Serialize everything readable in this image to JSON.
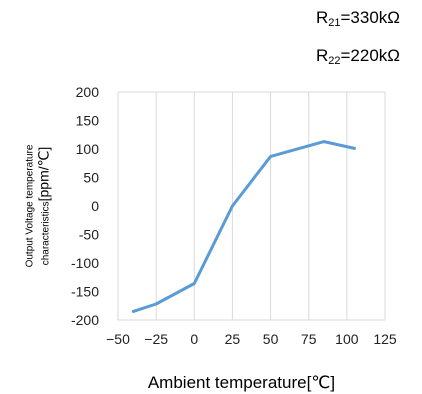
{
  "annotations": {
    "line1": {
      "symbol": "R",
      "sub": "21",
      "rest": "=330kΩ"
    },
    "line2": {
      "symbol": "R",
      "sub": "22",
      "rest": "=220kΩ"
    }
  },
  "chart_data": {
    "type": "line",
    "xlabel": "Ambient temperature[℃]",
    "ylabel_line1": "Output Voltage temperature",
    "ylabel_line2_text": "characteristics",
    "ylabel_line2_unit": "[ppm/℃]",
    "xlim": [
      -50,
      125
    ],
    "ylim": [
      -200,
      200
    ],
    "x_ticks": [
      -50,
      -25,
      0,
      25,
      50,
      75,
      100,
      125
    ],
    "x_tick_labels": [
      "−50",
      "−25",
      "0",
      "25",
      "50",
      "75",
      "100",
      "125"
    ],
    "y_ticks": [
      -200,
      -150,
      -100,
      -50,
      0,
      50,
      100,
      150,
      200
    ],
    "grid": "vertical",
    "series": [
      {
        "color": "#5b9bd5",
        "x": [
          -40,
          -25,
          0,
          25,
          50,
          85,
          105
        ],
        "y": [
          -185,
          -172,
          -136,
          0,
          87,
          113,
          101
        ]
      }
    ]
  }
}
